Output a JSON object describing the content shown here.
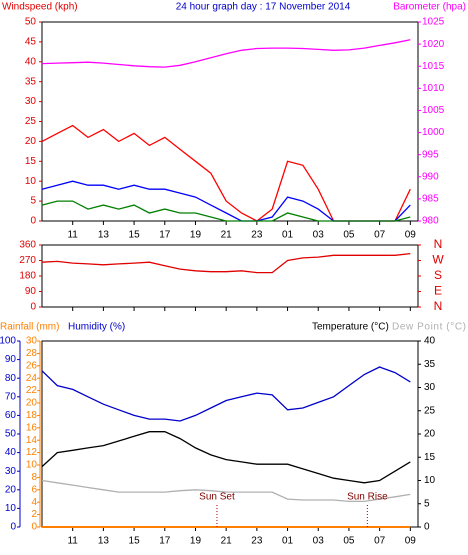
{
  "chart_data": [
    {
      "type": "line",
      "title": "24 hour graph day : 17 November 2014",
      "ylabel": "Windspeed (kph)",
      "y2label": "Barometer (hpa)",
      "x": [
        0,
        1,
        2,
        3,
        4,
        5,
        6,
        7,
        8,
        9,
        10,
        11,
        12,
        13,
        14,
        15,
        16,
        17,
        18,
        19,
        20,
        21,
        22,
        23,
        24
      ],
      "xlim": [
        0,
        24.5
      ],
      "xticks": [
        {
          "value": 2,
          "label": "11"
        },
        {
          "value": 4,
          "label": "13"
        },
        {
          "value": 6,
          "label": "15"
        },
        {
          "value": 8,
          "label": "17"
        },
        {
          "value": 10,
          "label": "19"
        },
        {
          "value": 12,
          "label": "21"
        },
        {
          "value": 14,
          "label": "23"
        },
        {
          "value": 16,
          "label": "01"
        },
        {
          "value": 18,
          "label": "03"
        },
        {
          "value": 20,
          "label": "05"
        },
        {
          "value": 22,
          "label": "07"
        },
        {
          "value": 24,
          "label": "09"
        }
      ],
      "ylim": [
        0,
        50
      ],
      "yticks": [
        0,
        5,
        10,
        15,
        20,
        25,
        30,
        35,
        40,
        45,
        50
      ],
      "y2lim": [
        980,
        1025
      ],
      "y2ticks": [
        980,
        985,
        990,
        995,
        1000,
        1005,
        1010,
        1015,
        1020,
        1025
      ],
      "series": [
        {
          "color": "#ff0000",
          "values": [
            20,
            22,
            24,
            21,
            23,
            20,
            22,
            19,
            21,
            18,
            15,
            12,
            5,
            2,
            0,
            3,
            15,
            14,
            8,
            0,
            0,
            0,
            0,
            0,
            8
          ]
        },
        {
          "color": "#0000ff",
          "values": [
            8,
            9,
            10,
            9,
            9,
            8,
            9,
            8,
            8,
            7,
            6,
            4,
            2,
            0,
            0,
            1,
            6,
            5,
            3,
            0,
            0,
            0,
            0,
            0,
            4
          ]
        },
        {
          "color": "#008000",
          "values": [
            4,
            5,
            5,
            3,
            4,
            3,
            4,
            2,
            3,
            2,
            2,
            1,
            0,
            0,
            0,
            0,
            2,
            1,
            0,
            0,
            0,
            0,
            0,
            0,
            1
          ]
        },
        {
          "color": "#ff00ff",
          "axis": "y2",
          "values": [
            1015.6,
            1015.7,
            1015.8,
            1015.9,
            1015.7,
            1015.4,
            1015.1,
            1014.9,
            1014.8,
            1015.2,
            1016,
            1016.9,
            1017.8,
            1018.6,
            1019,
            1019.1,
            1019.1,
            1019,
            1018.8,
            1018.6,
            1018.7,
            1019.1,
            1019.7,
            1020.3,
            1021
          ]
        }
      ]
    },
    {
      "type": "line",
      "x": [
        0,
        1,
        2,
        3,
        4,
        5,
        6,
        7,
        8,
        9,
        10,
        11,
        12,
        13,
        14,
        15,
        16,
        17,
        18,
        19,
        20,
        21,
        22,
        23,
        24
      ],
      "xlim": [
        0,
        24.5
      ],
      "xticks": [
        2,
        4,
        6,
        8,
        10,
        12,
        14,
        16,
        18,
        20,
        22,
        24
      ],
      "ylim": [
        0,
        360
      ],
      "yticks": [
        0,
        90,
        180,
        270,
        360
      ],
      "y2lim": [
        0,
        360
      ],
      "y2ticks": [
        {
          "value": 360,
          "label": "N"
        },
        {
          "value": 270,
          "label": "W"
        },
        {
          "value": 180,
          "label": "S"
        },
        {
          "value": 90,
          "label": "E"
        },
        {
          "value": 0,
          "label": "N"
        }
      ],
      "series": [
        {
          "color": "#e00000",
          "values": [
            260,
            265,
            255,
            250,
            245,
            250,
            255,
            260,
            240,
            220,
            210,
            205,
            205,
            210,
            200,
            200,
            270,
            285,
            290,
            300,
            300,
            300,
            300,
            300,
            310
          ]
        }
      ]
    },
    {
      "type": "line",
      "x": [
        0,
        1,
        2,
        3,
        4,
        5,
        6,
        7,
        8,
        9,
        10,
        11,
        12,
        13,
        14,
        15,
        16,
        17,
        18,
        19,
        20,
        21,
        22,
        23,
        24
      ],
      "xlim": [
        0,
        24.5
      ],
      "xticks": [
        {
          "value": 2,
          "label": "11"
        },
        {
          "value": 4,
          "label": "13"
        },
        {
          "value": 6,
          "label": "15"
        },
        {
          "value": 8,
          "label": "17"
        },
        {
          "value": 10,
          "label": "19"
        },
        {
          "value": 12,
          "label": "21"
        },
        {
          "value": 14,
          "label": "23"
        },
        {
          "value": 16,
          "label": "01"
        },
        {
          "value": 18,
          "label": "03"
        },
        {
          "value": 20,
          "label": "05"
        },
        {
          "value": 22,
          "label": "07"
        },
        {
          "value": 24,
          "label": "09"
        }
      ],
      "ylim": [
        0,
        100
      ],
      "yticks": [
        0,
        10,
        20,
        30,
        40,
        50,
        60,
        70,
        80,
        90,
        100
      ],
      "y3lim": [
        0,
        30
      ],
      "y3ticks": [
        0,
        2,
        4,
        6,
        8,
        10,
        12,
        14,
        16,
        18,
        20,
        22,
        24,
        26,
        28,
        30
      ],
      "y2lim": [
        0,
        40
      ],
      "y2ticks": [
        0,
        5,
        10,
        15,
        20,
        25,
        30,
        35,
        40
      ],
      "series": [
        {
          "name": "Rainfall (mm)",
          "color": "#ff8000",
          "axis": "y3",
          "values": [
            0,
            0,
            0,
            0,
            0,
            0,
            0,
            0,
            0,
            0,
            0,
            0,
            0,
            0,
            0,
            0,
            0,
            0,
            0,
            0,
            0,
            0,
            0,
            0,
            0
          ]
        },
        {
          "name": "Humidity (%)",
          "color": "#0000cc",
          "values": [
            84,
            76,
            74,
            70,
            66,
            63,
            60,
            58,
            58,
            57,
            60,
            64,
            68,
            70,
            72,
            71,
            63,
            64,
            67,
            70,
            76,
            82,
            86,
            83,
            78
          ]
        },
        {
          "name": "Temperature (°C)",
          "color": "#000000",
          "axis": "y2",
          "values": [
            13,
            16,
            16.5,
            17,
            17.5,
            18.5,
            19.5,
            20.5,
            20.5,
            19,
            17,
            15.5,
            14.5,
            14,
            13.5,
            13.5,
            13.5,
            12.5,
            11.5,
            10.5,
            10,
            9.5,
            10,
            12,
            14
          ]
        },
        {
          "name": "Dew Point (°C)",
          "color": "#b0b0b0",
          "axis": "y2",
          "values": [
            10,
            9.5,
            9,
            8.5,
            8,
            7.5,
            7.5,
            7.5,
            7.5,
            7.8,
            8,
            7.8,
            7.5,
            7.5,
            7.5,
            7.5,
            6,
            5.8,
            5.8,
            5.8,
            5.5,
            5.5,
            6,
            6.5,
            7
          ]
        }
      ],
      "annotations": [
        {
          "text": "Sun Set",
          "x": 11.4
        },
        {
          "text": "Sun Rise",
          "x": 21.2
        }
      ]
    }
  ]
}
